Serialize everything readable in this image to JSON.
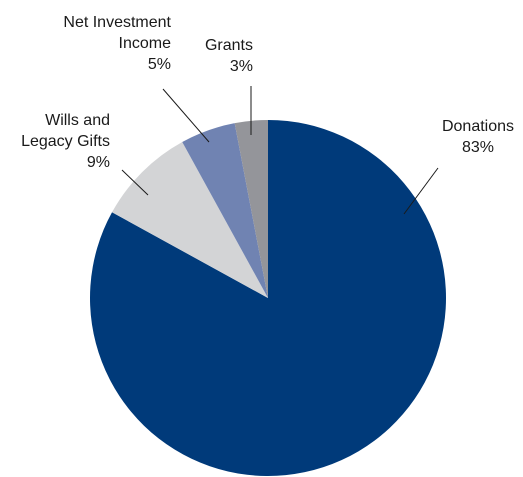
{
  "chart_data": {
    "type": "pie",
    "title": "",
    "start": "12 o'clock",
    "direction": "clockwise",
    "slices": [
      {
        "name": "Donations",
        "value": 83,
        "label_lines": [
          "Donations",
          "83%"
        ],
        "color": "#003a7a"
      },
      {
        "name": "Wills and Legacy Gifts",
        "value": 9,
        "label_lines": [
          "Wills and",
          "Legacy Gifts",
          "9%"
        ],
        "color": "#d3d4d6"
      },
      {
        "name": "Net Investment Income",
        "value": 5,
        "label_lines": [
          "Net Investment",
          "Income",
          "5%"
        ],
        "color": "#7083b2"
      },
      {
        "name": "Grants",
        "value": 3,
        "label_lines": [
          "Grants",
          "3%"
        ],
        "color": "#94959a"
      }
    ]
  }
}
